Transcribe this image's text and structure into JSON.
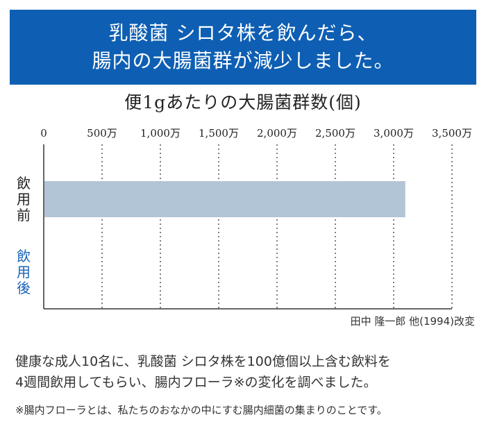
{
  "banner": {
    "line1": "乳酸菌 シロタ株を飲んだら、",
    "line2": "腸内の大腸菌群が減少しました。"
  },
  "colors": {
    "banner_bg": "#0e5fb3",
    "bar_fill": "#b2c5d6",
    "after_label": "#1a64b7",
    "before_label": "#222222"
  },
  "chart_data": {
    "type": "bar",
    "orientation": "horizontal",
    "title": "便1gあたりの大腸菌群数(個)",
    "categories": [
      "飲用前",
      "飲用後"
    ],
    "values": [
      3100,
      0
    ],
    "tick_values": [
      0,
      500,
      1000,
      1500,
      2000,
      2500,
      3000,
      3500
    ],
    "tick_labels": [
      "0",
      "500万",
      "1,000万",
      "1,500万",
      "2,000万",
      "2,500万",
      "3,000万",
      "3,500万"
    ],
    "xlim": [
      0,
      3500
    ],
    "xaxis_position": "top",
    "grid": "vertical-dotted"
  },
  "source": "田中 隆一郎 他(1994)改変",
  "description": {
    "line1": "健康な成人10名に、乳酸菌 シロタ株を100億個以上含む飲料を",
    "line2": "4週間飲用してもらい、腸内フローラ※の変化を調べました。"
  },
  "footnote": "※腸内フローラとは、私たちのおなかの中にすむ腸内細菌の集まりのことです。"
}
